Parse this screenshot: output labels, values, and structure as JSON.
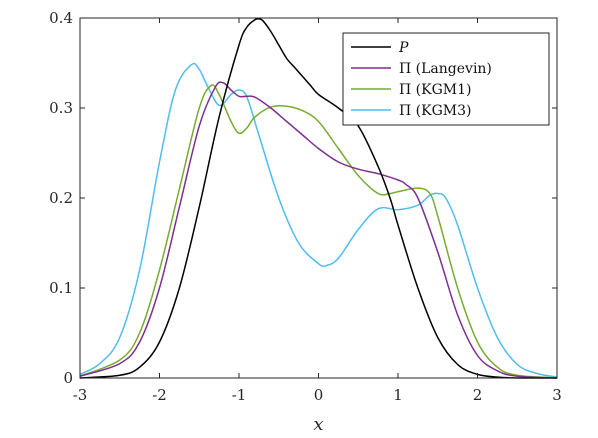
{
  "chart_data": {
    "type": "line",
    "title": "",
    "xlabel": "x",
    "ylabel": "",
    "xlim": [
      -3,
      3
    ],
    "ylim": [
      0,
      0.4
    ],
    "xticks": [
      -3,
      -2,
      -1,
      0,
      1,
      2,
      3
    ],
    "yticks": [
      0,
      0.1,
      0.2,
      0.3,
      0.4
    ],
    "xtick_labels": [
      "-3",
      "-2",
      "-1",
      "0",
      "1",
      "2",
      "3"
    ],
    "ytick_labels": [
      "0",
      "0.1",
      "0.2",
      "0.3",
      "0.4"
    ],
    "grid": false,
    "legend_position": "top-right",
    "series": [
      {
        "name": "P",
        "italic": true,
        "color": "#000000",
        "x": [
          -3.0,
          -2.5,
          -2.25,
          -2.0,
          -1.75,
          -1.5,
          -1.25,
          -1.0,
          -0.9,
          -0.8,
          -0.75,
          -0.7,
          -0.6,
          -0.5,
          -0.4,
          -0.3,
          -0.2,
          -0.1,
          0.0,
          0.25,
          0.5,
          0.75,
          0.9,
          1.0,
          1.25,
          1.5,
          1.75,
          2.0,
          2.25,
          2.5,
          3.0
        ],
        "y": [
          0.0,
          0.003,
          0.012,
          0.04,
          0.1,
          0.19,
          0.29,
          0.37,
          0.39,
          0.398,
          0.399,
          0.397,
          0.385,
          0.37,
          0.355,
          0.345,
          0.335,
          0.325,
          0.315,
          0.3,
          0.28,
          0.235,
          0.2,
          0.17,
          0.1,
          0.045,
          0.015,
          0.004,
          0.001,
          0.0,
          0.0
        ]
      },
      {
        "name": "Π (Langevin)",
        "italic": false,
        "color": "#7e2f8e",
        "x": [
          -3.0,
          -2.5,
          -2.25,
          -2.0,
          -1.75,
          -1.5,
          -1.3,
          -1.2,
          -1.1,
          -1.0,
          -0.9,
          -0.8,
          -0.6,
          -0.4,
          -0.2,
          0.0,
          0.25,
          0.5,
          0.75,
          1.0,
          1.1,
          1.25,
          1.5,
          1.75,
          2.0,
          2.25,
          2.5,
          3.0
        ],
        "y": [
          0.002,
          0.016,
          0.04,
          0.1,
          0.19,
          0.28,
          0.323,
          0.328,
          0.32,
          0.313,
          0.313,
          0.312,
          0.3,
          0.285,
          0.27,
          0.255,
          0.24,
          0.232,
          0.227,
          0.22,
          0.215,
          0.2,
          0.14,
          0.07,
          0.025,
          0.008,
          0.002,
          0.0
        ]
      },
      {
        "name": "Π (KGM1)",
        "italic": false,
        "color": "#77ac30",
        "x": [
          -3.0,
          -2.5,
          -2.25,
          -2.0,
          -1.75,
          -1.5,
          -1.35,
          -1.25,
          -1.1,
          -1.0,
          -0.9,
          -0.8,
          -0.6,
          -0.4,
          -0.2,
          0.0,
          0.25,
          0.5,
          0.75,
          0.9,
          1.0,
          1.25,
          1.4,
          1.5,
          1.75,
          2.0,
          2.25,
          2.5,
          3.0
        ],
        "y": [
          0.002,
          0.02,
          0.05,
          0.12,
          0.21,
          0.3,
          0.325,
          0.315,
          0.285,
          0.272,
          0.278,
          0.29,
          0.301,
          0.302,
          0.297,
          0.285,
          0.255,
          0.225,
          0.205,
          0.205,
          0.207,
          0.211,
          0.205,
          0.18,
          0.1,
          0.04,
          0.012,
          0.003,
          0.0
        ]
      },
      {
        "name": "Π (KGM3)",
        "italic": false,
        "color": "#4dbeee",
        "x": [
          -3.0,
          -2.75,
          -2.5,
          -2.25,
          -2.0,
          -1.8,
          -1.6,
          -1.5,
          -1.4,
          -1.25,
          -1.1,
          -1.0,
          -0.9,
          -0.75,
          -0.5,
          -0.25,
          0.0,
          0.1,
          0.25,
          0.5,
          0.75,
          1.0,
          1.25,
          1.4,
          1.5,
          1.6,
          1.75,
          2.0,
          2.25,
          2.5,
          2.75,
          3.0
        ],
        "y": [
          0.004,
          0.016,
          0.045,
          0.12,
          0.24,
          0.32,
          0.348,
          0.343,
          0.325,
          0.303,
          0.315,
          0.32,
          0.312,
          0.27,
          0.2,
          0.15,
          0.127,
          0.125,
          0.133,
          0.165,
          0.188,
          0.187,
          0.192,
          0.203,
          0.205,
          0.2,
          0.17,
          0.1,
          0.045,
          0.015,
          0.005,
          0.001
        ]
      }
    ]
  }
}
